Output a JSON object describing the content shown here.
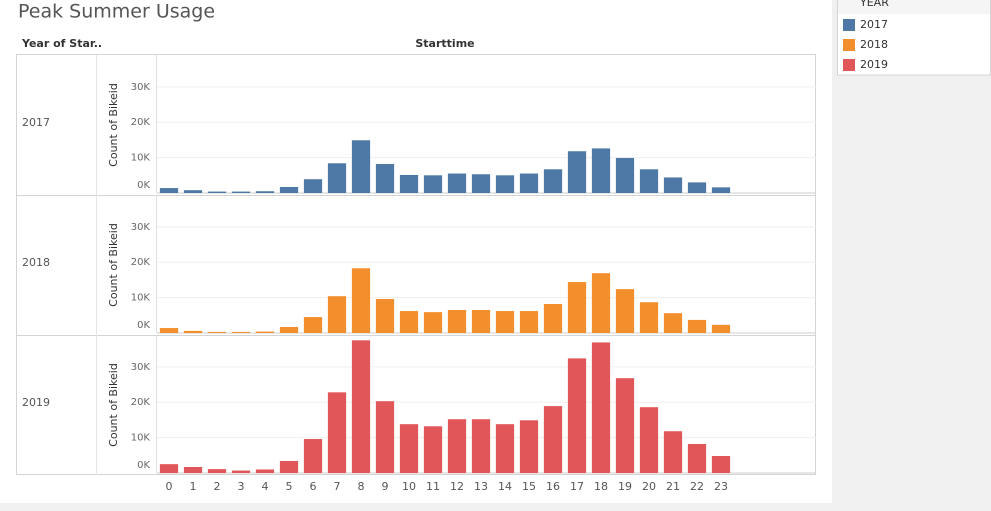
{
  "chart_data": {
    "type": "bar",
    "title": "Peak Summer Usage",
    "row_header": "Year of Star..",
    "column_header": "Starttime",
    "y_label": "Count of Bikeid",
    "legend_title": "YEAR",
    "legend_position": "top-right",
    "grid": true,
    "categories": [
      0,
      1,
      2,
      3,
      4,
      5,
      6,
      7,
      8,
      9,
      10,
      11,
      12,
      13,
      14,
      15,
      16,
      17,
      18,
      19,
      20,
      21,
      22,
      23
    ],
    "ylim": [
      0,
      39000
    ],
    "yticks": [
      {
        "value": 0,
        "label": "0K"
      },
      {
        "value": 10000,
        "label": "10K"
      },
      {
        "value": 20000,
        "label": "20K"
      },
      {
        "value": 30000,
        "label": "30K"
      }
    ],
    "series": [
      {
        "name": "2017",
        "color": "#4e79a7",
        "values": [
          1400,
          800,
          400,
          400,
          500,
          1700,
          3900,
          8400,
          14900,
          8200,
          5100,
          5000,
          5500,
          5300,
          5000,
          5500,
          6700,
          11800,
          12600,
          9900,
          6700,
          4400,
          3000,
          1600
        ]
      },
      {
        "name": "2018",
        "color": "#f28e2b",
        "values": [
          1400,
          600,
          300,
          300,
          400,
          1700,
          4500,
          10400,
          18300,
          9600,
          6200,
          5900,
          6500,
          6500,
          6200,
          6200,
          8200,
          14400,
          16900,
          12400,
          8700,
          5600,
          3700,
          2300
        ]
      },
      {
        "name": "2019",
        "color": "#e15759",
        "values": [
          2500,
          1700,
          1100,
          700,
          1000,
          3400,
          9600,
          22800,
          37500,
          20300,
          13800,
          13200,
          15200,
          15200,
          13800,
          14900,
          18900,
          32400,
          36900,
          26800,
          18600,
          11800,
          8200,
          4800
        ]
      }
    ]
  }
}
